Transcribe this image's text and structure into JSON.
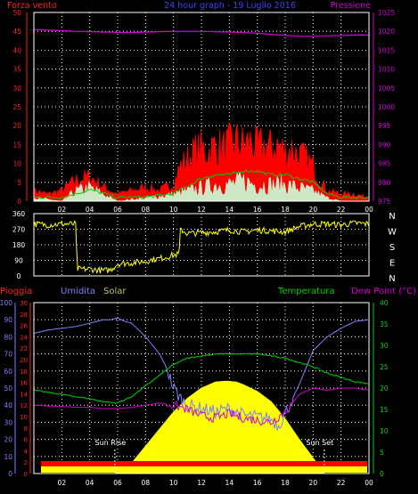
{
  "colors": {
    "background": "#000000",
    "frame": "#ffffff",
    "grid": "#ffffff",
    "wind_gust": "#ff0000",
    "wind_avg": "#00d000",
    "wind_speed": "#c8ffd8",
    "pressure": "#d000d0",
    "direction": "#ffff00",
    "rain": "#ff0000",
    "humidity": "#8080ff",
    "solar": "#ffff00",
    "temperature": "#00d000",
    "dew_point": "#d000d0",
    "sun_marker": "#ffffff"
  },
  "chart_data": [
    {
      "type": "line",
      "id": "wind_pressure",
      "title": "24 hour graph - 19 Luglio 2016",
      "y_left_label": "Forza vento",
      "y_right_label": "Pressione",
      "x_ticks": [
        "02",
        "04",
        "06",
        "08",
        "10",
        "12",
        "14",
        "16",
        "18",
        "20",
        "22",
        "00"
      ],
      "x_range": [
        0,
        24
      ],
      "y_left_ticks": [
        0,
        5,
        10,
        15,
        20,
        25,
        30,
        35,
        40,
        45,
        50
      ],
      "y_left_range": [
        0,
        50
      ],
      "y_right_ticks": [
        975,
        980,
        985,
        990,
        995,
        1000,
        1005,
        1010,
        1015,
        1020,
        1025
      ],
      "y_right_range": [
        975,
        1025
      ],
      "grid": true,
      "series": [
        {
          "key": "gust",
          "style": "spiky",
          "x": [
            0,
            1,
            2,
            3,
            4,
            5,
            6,
            7,
            8,
            9,
            10,
            10.5,
            11,
            11.5,
            12,
            12.5,
            13,
            13.5,
            14,
            14.5,
            15,
            15.5,
            16,
            16.5,
            17,
            17.5,
            18,
            18.5,
            19,
            19.5,
            20,
            20.5,
            21,
            22,
            23,
            24
          ],
          "values": [
            3,
            2,
            3,
            6,
            7,
            4,
            2,
            3,
            4,
            3,
            5,
            10,
            12,
            14,
            15,
            14,
            16,
            15,
            16,
            17,
            16,
            17,
            15,
            16,
            15,
            16,
            14,
            15,
            13,
            12,
            10,
            6,
            3,
            2,
            2,
            1
          ]
        },
        {
          "key": "avg",
          "style": "line",
          "x": [
            0,
            2,
            4,
            6,
            8,
            10,
            11,
            12,
            13,
            14,
            15,
            16,
            17,
            18,
            19,
            20,
            21,
            22,
            24
          ],
          "values": [
            1,
            1,
            3,
            1,
            1,
            2,
            4,
            6,
            7,
            7,
            8,
            8,
            7,
            7,
            6,
            5,
            2,
            1,
            1
          ]
        },
        {
          "key": "speed",
          "style": "spiky",
          "x": [
            0,
            2,
            3,
            4,
            5,
            6,
            8,
            10,
            11,
            12,
            13,
            14,
            15,
            16,
            17,
            18,
            19,
            20,
            21,
            22,
            24
          ],
          "values": [
            1,
            0,
            3,
            4,
            2,
            0,
            1,
            2,
            3,
            4,
            5,
            5,
            6,
            5,
            5,
            5,
            4,
            3,
            1,
            0,
            0
          ]
        },
        {
          "key": "pressure",
          "axis": "right",
          "style": "line",
          "x": [
            0,
            1,
            2,
            3,
            4,
            5,
            6,
            7,
            8,
            9,
            10,
            11,
            12,
            13,
            14,
            15,
            16,
            17,
            18,
            19,
            20,
            21,
            22,
            23,
            24
          ],
          "values": [
            1020.5,
            1020.3,
            1020.2,
            1020.0,
            1019.9,
            1019.8,
            1019.7,
            1019.7,
            1019.8,
            1019.9,
            1020.0,
            1020.0,
            1020.0,
            1019.9,
            1019.8,
            1019.7,
            1019.5,
            1019.2,
            1018.9,
            1018.7,
            1018.7,
            1018.8,
            1018.9,
            1019.0,
            1019.0
          ]
        }
      ]
    },
    {
      "type": "scatter",
      "id": "wind_direction",
      "y_ticks": [
        0,
        90,
        180,
        270,
        360
      ],
      "y_range": [
        0,
        360
      ],
      "compass_labels": [
        "N",
        "W",
        "S",
        "E",
        "N"
      ],
      "x_range": [
        0,
        24
      ],
      "grid": true,
      "series": [
        {
          "key": "direction",
          "x": [
            0,
            1,
            2,
            3,
            3.1,
            4,
            5,
            5.5,
            6,
            7,
            8,
            8.5,
            9,
            10,
            10.4,
            10.5,
            11,
            12,
            13,
            14,
            15,
            16,
            17,
            18,
            19,
            20,
            21,
            22,
            23,
            24
          ],
          "values": [
            300,
            295,
            300,
            300,
            40,
            40,
            30,
            35,
            70,
            75,
            85,
            95,
            100,
            120,
            125,
            270,
            245,
            250,
            255,
            265,
            255,
            265,
            260,
            255,
            285,
            300,
            300,
            295,
            305,
            300
          ]
        }
      ]
    },
    {
      "type": "line",
      "id": "rain_humidity_solar_temp",
      "legend": [
        "Pioggia",
        "Umidita",
        "Solar",
        "Temperatura",
        "Dew Point (°C)"
      ],
      "x_ticks": [
        "02",
        "04",
        "06",
        "08",
        "10",
        "12",
        "14",
        "16",
        "18",
        "20",
        "22",
        "00"
      ],
      "x_range": [
        0,
        24
      ],
      "y_rain_ticks": [
        0,
        2,
        4,
        6,
        8,
        10,
        12,
        14,
        16,
        18,
        20,
        22,
        24,
        26,
        28,
        30
      ],
      "y_rain_range": [
        0,
        30
      ],
      "y_humidity_ticks": [
        0,
        10,
        20,
        30,
        40,
        50,
        60,
        70,
        80,
        90,
        100
      ],
      "y_humidity_range": [
        0,
        100
      ],
      "y_temp_ticks": [
        0,
        5,
        10,
        15,
        20,
        25,
        30,
        35,
        40
      ],
      "y_temp_range": [
        0,
        40
      ],
      "annotations": [
        {
          "text": "Sun Rise",
          "x": 5.8
        },
        {
          "text": "Sun Set",
          "x": 20.8
        }
      ],
      "grid": true,
      "series": [
        {
          "key": "rain",
          "axis": "rain",
          "values_constant": 0
        },
        {
          "key": "solar",
          "axis": "humidity",
          "fill": true,
          "x": [
            5.8,
            6.5,
            7,
            8,
            9,
            10,
            11,
            12,
            13,
            13.8,
            14.5,
            15,
            16,
            17,
            18,
            19,
            20,
            20.8
          ],
          "values": [
            0,
            3,
            6,
            16,
            26,
            36,
            44,
            50,
            53.5,
            54,
            53.5,
            52,
            48,
            42,
            32,
            20,
            9,
            0
          ]
        },
        {
          "key": "humidity",
          "axis": "humidity",
          "style": "line",
          "x": [
            0,
            1,
            2,
            3,
            4,
            5,
            5.5,
            6,
            6.5,
            7,
            8,
            9,
            9.5,
            10,
            10.5,
            11,
            12,
            13,
            14,
            15,
            16,
            17,
            17.5,
            18,
            19,
            20,
            21,
            22,
            23,
            24
          ],
          "values": [
            82,
            84,
            85,
            86,
            88,
            90,
            90,
            91,
            89,
            88,
            80,
            70,
            62,
            50,
            44,
            40,
            38,
            36,
            38,
            34,
            33,
            32,
            28,
            35,
            52,
            72,
            80,
            85,
            89,
            90
          ]
        },
        {
          "key": "temperature",
          "axis": "temp",
          "style": "line",
          "x": [
            0,
            1,
            2,
            3,
            4,
            5,
            6,
            7,
            8,
            9,
            10,
            11,
            12,
            13,
            14,
            15,
            16,
            17,
            18,
            19,
            20,
            21,
            22,
            23,
            24
          ],
          "values": [
            19.5,
            19,
            18.5,
            18,
            17.5,
            16.8,
            16.5,
            18,
            20.5,
            23,
            25.5,
            27,
            27.5,
            28,
            28,
            28,
            28,
            27.5,
            27,
            26,
            25,
            23.5,
            22.5,
            21.5,
            21
          ]
        },
        {
          "key": "dew_point",
          "axis": "temp",
          "style": "line",
          "x": [
            0,
            1,
            2,
            3,
            4,
            5,
            6,
            7,
            8,
            9,
            10,
            11,
            12,
            13,
            14,
            15,
            16,
            17,
            18,
            19,
            20,
            21,
            22,
            23,
            24
          ],
          "values": [
            16,
            15.8,
            15.7,
            15.5,
            15.5,
            15.2,
            15.2,
            15.5,
            16,
            16.5,
            16,
            15,
            13.5,
            13,
            14,
            13,
            12.5,
            12,
            14.5,
            18.5,
            20,
            19.5,
            20,
            20,
            19.5
          ]
        }
      ]
    }
  ]
}
